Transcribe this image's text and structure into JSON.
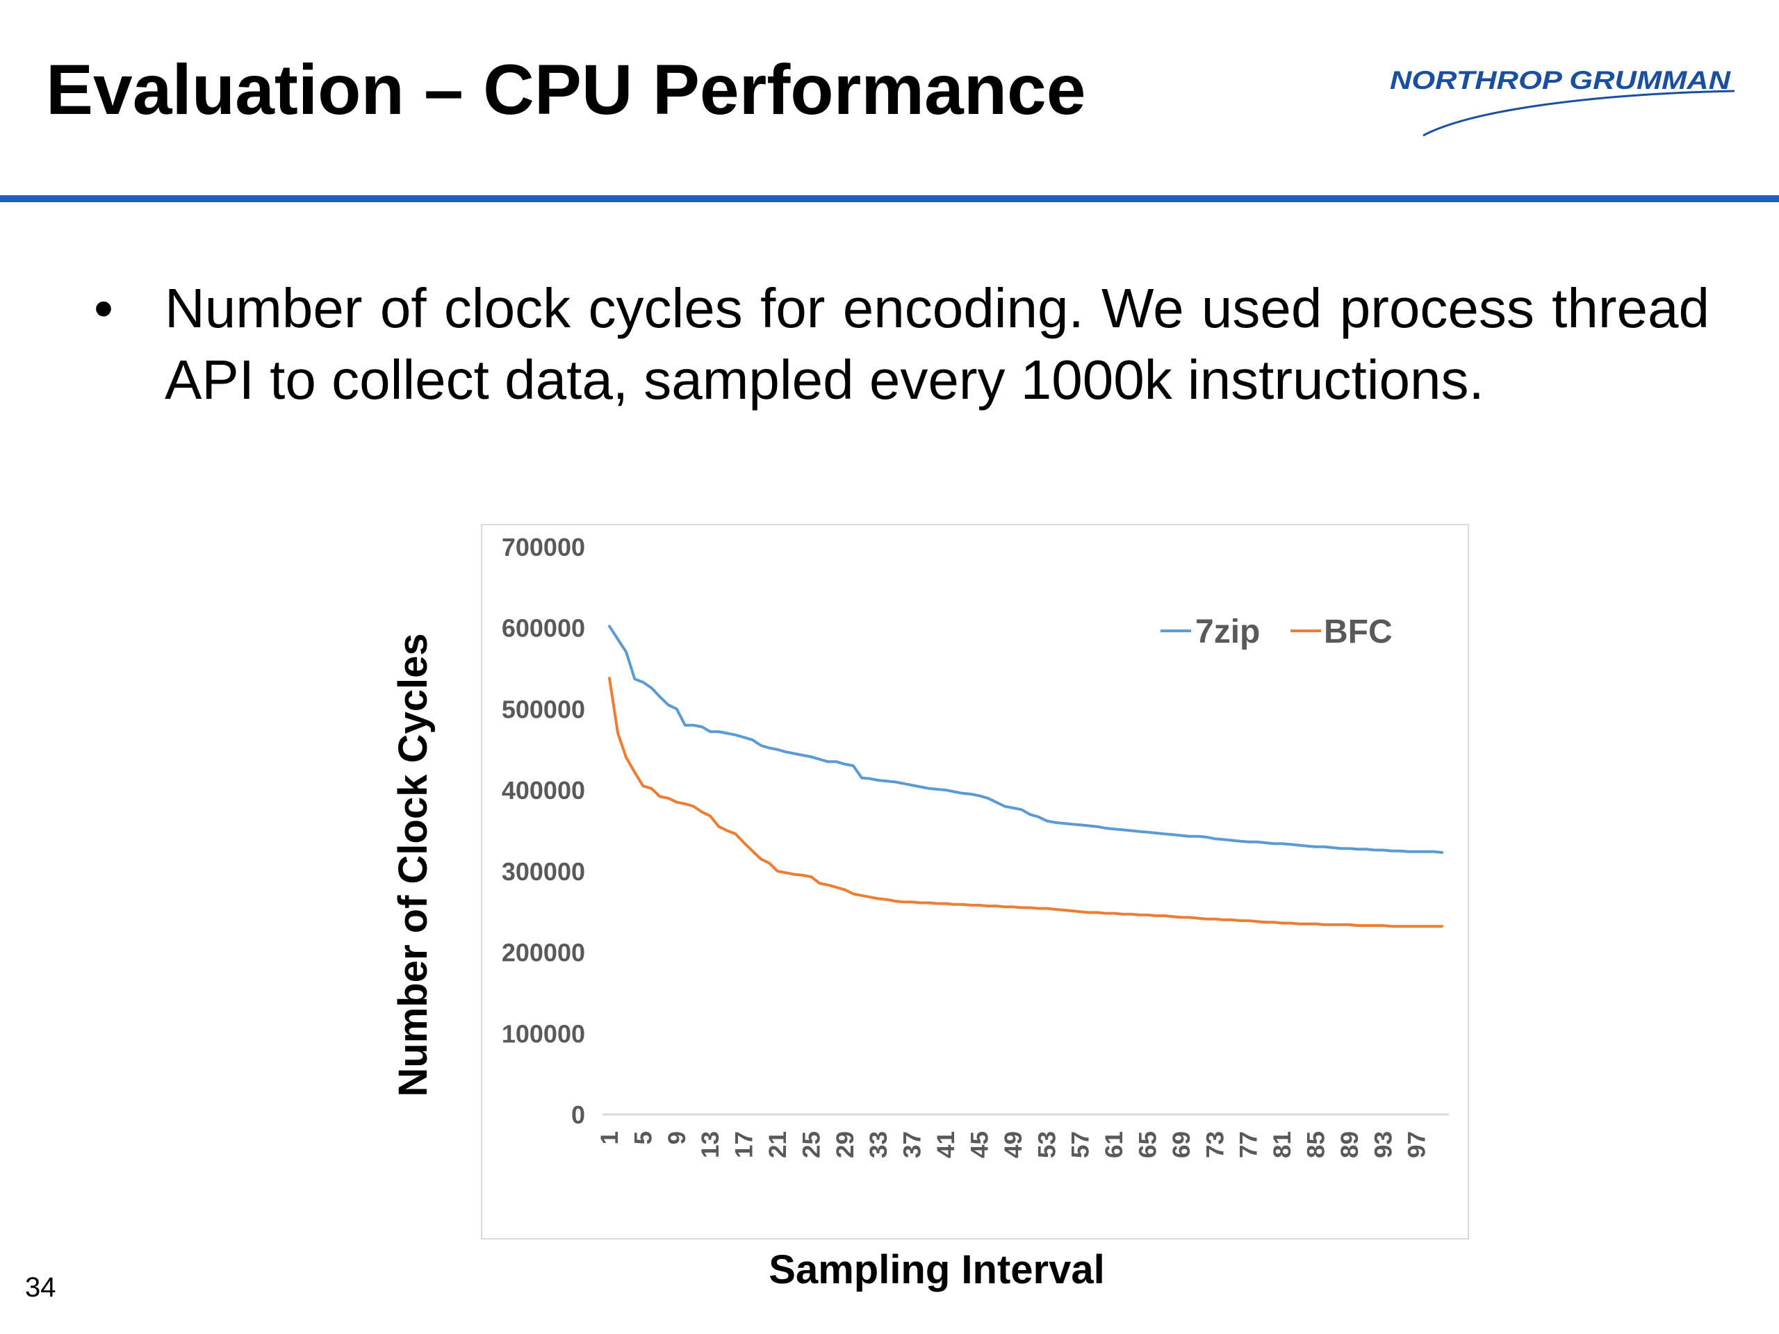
{
  "slide": {
    "title": "Evaluation – CPU Performance",
    "logo_text": "NORTHROP GRUMMAN",
    "bullet_mark": "•",
    "bullet_text": "Number of clock cycles for encoding. We used process thread API to collect data, sampled every 1000k instructions.",
    "page_number": "34"
  },
  "colors": {
    "accent_rule": "#1f5fb5",
    "logo_blue": "#1a4fa0",
    "series_7zip": "#5b9bd5",
    "series_bfc": "#ed7d31"
  },
  "chart_data": {
    "type": "line",
    "xlabel": "Sampling Interval",
    "ylabel": "Number of Clock Cycles",
    "ylim": [
      0,
      700000
    ],
    "y_ticks": [
      0,
      100000,
      200000,
      300000,
      400000,
      500000,
      600000,
      700000
    ],
    "y_tick_labels": [
      "0",
      "100000",
      "200000",
      "300000",
      "400000",
      "500000",
      "600000",
      "700000"
    ],
    "x_tick_labels": [
      "1",
      "5",
      "9",
      "13",
      "17",
      "21",
      "25",
      "29",
      "33",
      "37",
      "41",
      "45",
      "49",
      "53",
      "57",
      "61",
      "65",
      "69",
      "73",
      "77",
      "81",
      "85",
      "89",
      "93",
      "97"
    ],
    "x": [
      1,
      2,
      3,
      4,
      5,
      6,
      7,
      8,
      9,
      10,
      11,
      12,
      13,
      14,
      15,
      16,
      17,
      18,
      19,
      20,
      21,
      22,
      23,
      24,
      25,
      26,
      27,
      28,
      29,
      30,
      31,
      32,
      33,
      34,
      35,
      36,
      37,
      38,
      39,
      40,
      41,
      42,
      43,
      44,
      45,
      46,
      47,
      48,
      49,
      50,
      51,
      52,
      53,
      54,
      55,
      56,
      57,
      58,
      59,
      60,
      61,
      62,
      63,
      64,
      65,
      66,
      67,
      68,
      69,
      70,
      71,
      72,
      73,
      74,
      75,
      76,
      77,
      78,
      79,
      80,
      81,
      82,
      83,
      84,
      85,
      86,
      87,
      88,
      89,
      90,
      91,
      92,
      93,
      94,
      95,
      96,
      97,
      98,
      99,
      100
    ],
    "legend": "top-right",
    "grid": false,
    "series": [
      {
        "name": "7zip",
        "color": "#5b9bd5",
        "values": [
          602000,
          586000,
          570000,
          537000,
          533000,
          526000,
          515000,
          505000,
          500000,
          480000,
          480000,
          478000,
          472000,
          472000,
          470000,
          468000,
          465000,
          462000,
          455000,
          452000,
          450000,
          447000,
          445000,
          443000,
          441000,
          438000,
          435000,
          435000,
          432000,
          430000,
          415000,
          414000,
          412000,
          411000,
          410000,
          408000,
          406000,
          404000,
          402000,
          401000,
          400000,
          398000,
          396000,
          395000,
          393000,
          390000,
          385000,
          380000,
          378000,
          376000,
          370000,
          367000,
          362000,
          360000,
          359000,
          358000,
          357000,
          356000,
          355000,
          353000,
          352000,
          351000,
          350000,
          349000,
          348000,
          347000,
          346000,
          345000,
          344000,
          343000,
          343000,
          342000,
          340000,
          339000,
          338000,
          337000,
          336000,
          336000,
          335000,
          334000,
          334000,
          333000,
          332000,
          331000,
          330000,
          330000,
          329000,
          328000,
          328000,
          327000,
          327000,
          326000,
          326000,
          325000,
          325000,
          324000,
          324000,
          324000,
          324000,
          323000
        ]
      },
      {
        "name": "BFC",
        "color": "#ed7d31",
        "values": [
          538000,
          470000,
          440000,
          422000,
          405000,
          402000,
          392000,
          390000,
          385000,
          383000,
          380000,
          373000,
          368000,
          355000,
          350000,
          346000,
          335000,
          325000,
          315000,
          310000,
          300000,
          298000,
          296000,
          295000,
          293000,
          285000,
          283000,
          280000,
          277000,
          272000,
          270000,
          268000,
          266000,
          265000,
          263000,
          262000,
          262000,
          261000,
          261000,
          260000,
          260000,
          259000,
          259000,
          258000,
          258000,
          257000,
          257000,
          256000,
          256000,
          255000,
          255000,
          254000,
          254000,
          253000,
          252000,
          251000,
          250000,
          249000,
          249000,
          248000,
          248000,
          247000,
          247000,
          246000,
          246000,
          245000,
          245000,
          244000,
          243000,
          243000,
          242000,
          241000,
          241000,
          240000,
          240000,
          239000,
          239000,
          238000,
          237000,
          237000,
          236000,
          236000,
          235000,
          235000,
          235000,
          234000,
          234000,
          234000,
          234000,
          233000,
          233000,
          233000,
          233000,
          232000,
          232000,
          232000,
          232000,
          232000,
          232000,
          232000
        ]
      }
    ]
  }
}
